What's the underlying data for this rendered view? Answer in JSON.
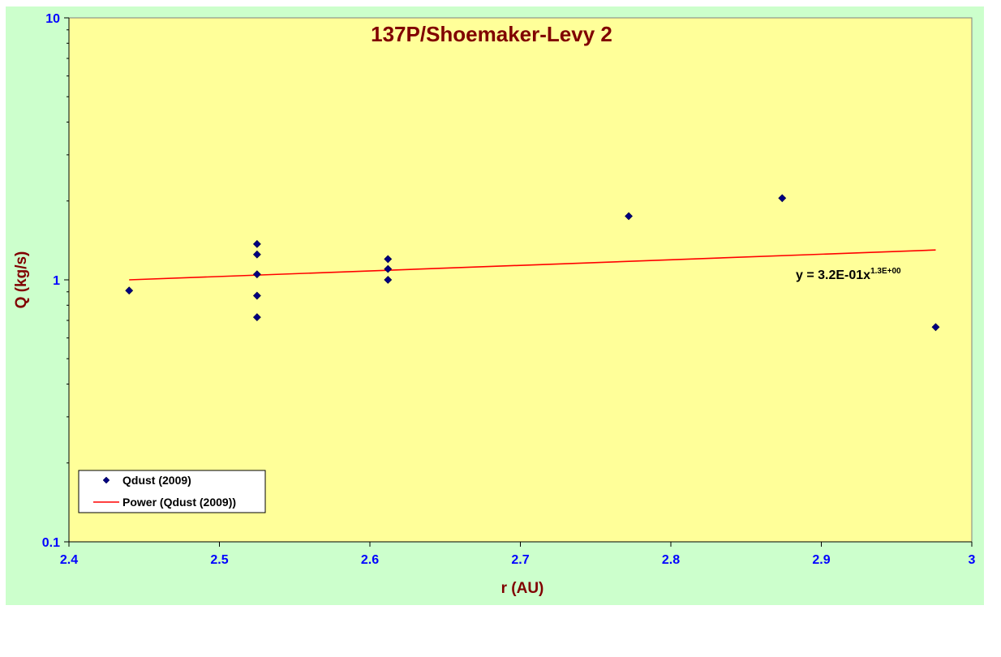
{
  "chart_data": {
    "type": "scatter",
    "title": "137P/Shoemaker-Levy 2",
    "xlabel": "r (AU)",
    "ylabel": "Q (kg/s)",
    "xlim": [
      2.4,
      3.0
    ],
    "ylim": [
      0.1,
      10
    ],
    "yscale": "log",
    "x_ticks": [
      "2.4",
      "2.5",
      "2.6",
      "2.7",
      "2.8",
      "2.9",
      "3"
    ],
    "y_ticks": [
      "0.1",
      "1",
      "10"
    ],
    "grid": false,
    "legend_position": "bottom-left",
    "colors": {
      "outer_background": "#ccffcc",
      "plot_background": "#ffff99",
      "points": "#000080",
      "trendline": "#ff0000",
      "title": "#800000",
      "ticks": "#0000ff"
    },
    "series": [
      {
        "name": "Qdust (2009)",
        "marker": "diamond",
        "x": [
          2.44,
          2.525,
          2.525,
          2.525,
          2.525,
          2.525,
          2.612,
          2.612,
          2.612,
          2.772,
          2.874,
          2.976
        ],
        "y": [
          0.91,
          1.37,
          1.25,
          1.05,
          0.87,
          0.72,
          1.2,
          1.1,
          1.0,
          1.75,
          2.05,
          0.66
        ]
      }
    ],
    "trendline": {
      "name": "Power (Qdust (2009))",
      "x": [
        2.44,
        2.976
      ],
      "y": [
        1.0,
        1.3
      ],
      "equation_main": "y = 3.2E-01x",
      "equation_exp": "1.3E+00"
    }
  }
}
